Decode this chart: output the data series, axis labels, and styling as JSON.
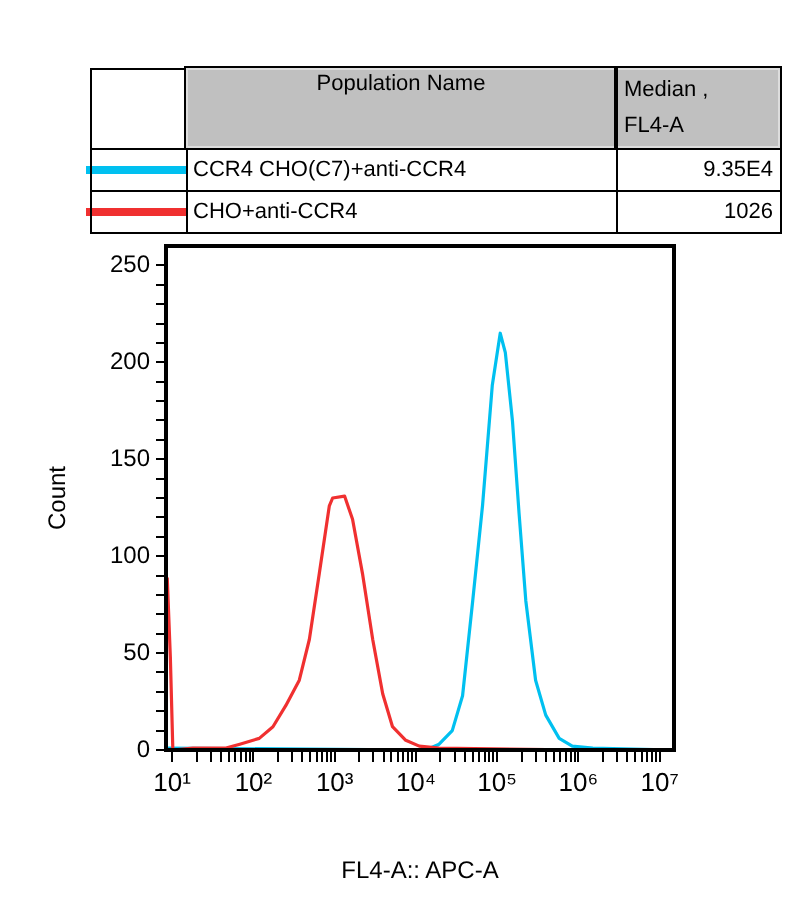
{
  "chart_data": {
    "type": "line",
    "xlabel": "FL4-A:: APC-A",
    "ylabel": "Count",
    "legend": "top",
    "legend_title": "Population Name",
    "annotations": [
      "Median , FL4-A",
      "9.35E4",
      "1026"
    ],
    "log": "x",
    "xlim": [
      8.4,
      15000000
    ],
    "ylim": [
      0,
      260
    ],
    "xticks": [
      {
        "value": 10,
        "label": "10¹"
      },
      {
        "value": 20,
        "label": null
      },
      {
        "value": 30,
        "label": null
      },
      {
        "value": 40,
        "label": null
      },
      {
        "value": 50,
        "label": null
      },
      {
        "value": 60,
        "label": null
      },
      {
        "value": 70,
        "label": null
      },
      {
        "value": 80,
        "label": null
      },
      {
        "value": 90,
        "label": null
      },
      {
        "value": 100,
        "label": "10²"
      },
      {
        "value": 200,
        "label": null
      },
      {
        "value": 300,
        "label": null
      },
      {
        "value": 400,
        "label": null
      },
      {
        "value": 500,
        "label": null
      },
      {
        "value": 600,
        "label": null
      },
      {
        "value": 700,
        "label": null
      },
      {
        "value": 800,
        "label": null
      },
      {
        "value": 900,
        "label": null
      },
      {
        "value": 1000,
        "label": "10³"
      },
      {
        "value": 2000,
        "label": null
      },
      {
        "value": 3000,
        "label": null
      },
      {
        "value": 4000,
        "label": null
      },
      {
        "value": 5000,
        "label": null
      },
      {
        "value": 6000,
        "label": null
      },
      {
        "value": 7000,
        "label": null
      },
      {
        "value": 8000,
        "label": null
      },
      {
        "value": 9000,
        "label": null
      },
      {
        "value": 10000,
        "label": "10⁴"
      },
      {
        "value": 20000,
        "label": null
      },
      {
        "value": 30000,
        "label": null
      },
      {
        "value": 40000,
        "label": null
      },
      {
        "value": 50000,
        "label": null
      },
      {
        "value": 60000,
        "label": null
      },
      {
        "value": 70000,
        "label": null
      },
      {
        "value": 80000,
        "label": null
      },
      {
        "value": 90000,
        "label": null
      },
      {
        "value": 100000,
        "label": "10⁵"
      },
      {
        "value": 200000,
        "label": null
      },
      {
        "value": 300000,
        "label": null
      },
      {
        "value": 400000,
        "label": null
      },
      {
        "value": 500000,
        "label": null
      },
      {
        "value": 600000,
        "label": null
      },
      {
        "value": 700000,
        "label": null
      },
      {
        "value": 800000,
        "label": null
      },
      {
        "value": 900000,
        "label": null
      },
      {
        "value": 1000000,
        "label": "10⁶"
      },
      {
        "value": 2000000,
        "label": null
      },
      {
        "value": 3000000,
        "label": null
      },
      {
        "value": 4000000,
        "label": null
      },
      {
        "value": 5000000,
        "label": null
      },
      {
        "value": 6000000,
        "label": null
      },
      {
        "value": 7000000,
        "label": null
      },
      {
        "value": 8000000,
        "label": null
      },
      {
        "value": 9000000,
        "label": null
      },
      {
        "value": 10000000,
        "label": "10⁷"
      }
    ],
    "yticks": [
      0,
      {
        "value": 10,
        "label": null
      },
      {
        "value": 20,
        "label": null
      },
      {
        "value": 30,
        "label": null
      },
      {
        "value": 40,
        "label": null
      },
      50,
      {
        "value": 60,
        "label": null
      },
      {
        "value": 70,
        "label": null
      },
      {
        "value": 80,
        "label": null
      },
      {
        "value": 90,
        "label": null
      },
      100,
      {
        "value": 110,
        "label": null
      },
      {
        "value": 120,
        "label": null
      },
      {
        "value": 130,
        "label": null
      },
      {
        "value": 140,
        "label": null
      },
      150,
      {
        "value": 160,
        "label": null
      },
      {
        "value": 170,
        "label": null
      },
      {
        "value": 180,
        "label": null
      },
      {
        "value": 190,
        "label": null
      },
      200,
      {
        "value": 210,
        "label": null
      },
      {
        "value": 220,
        "label": null
      },
      {
        "value": 230,
        "label": null
      },
      {
        "value": 240,
        "label": null
      },
      250
    ],
    "series": [
      {
        "name": "CCR4 CHO(C7)+anti-CCR4",
        "color": "#00c0f0",
        "x": [
          8.4,
          13200,
          19300,
          28000,
          37500,
          50000,
          66000,
          87000,
          109000,
          126000,
          154000,
          186000,
          225000,
          297000,
          396000,
          580000,
          840000,
          1500000,
          15000000
        ],
        "values": [
          1,
          0,
          3,
          10,
          28,
          77,
          126,
          188,
          215,
          205,
          170,
          122,
          77,
          36,
          18,
          6,
          2,
          1,
          0
        ]
      },
      {
        "name": "CHO+anti-CCR4",
        "color": "#f03030",
        "x": [
          8.7,
          9.5,
          10.2,
          18,
          46,
          68,
          118,
          174,
          251,
          367,
          488,
          647,
          860,
          944,
          1324,
          1660,
          2200,
          2940,
          3900,
          5150,
          7500,
          11000,
          19300,
          1200000
        ],
        "values": [
          89,
          48,
          0,
          1,
          1,
          3,
          6,
          12,
          23,
          36,
          57,
          91,
          126,
          130,
          131,
          119,
          91,
          57,
          29,
          12,
          5,
          2,
          1,
          0
        ]
      }
    ]
  }
}
